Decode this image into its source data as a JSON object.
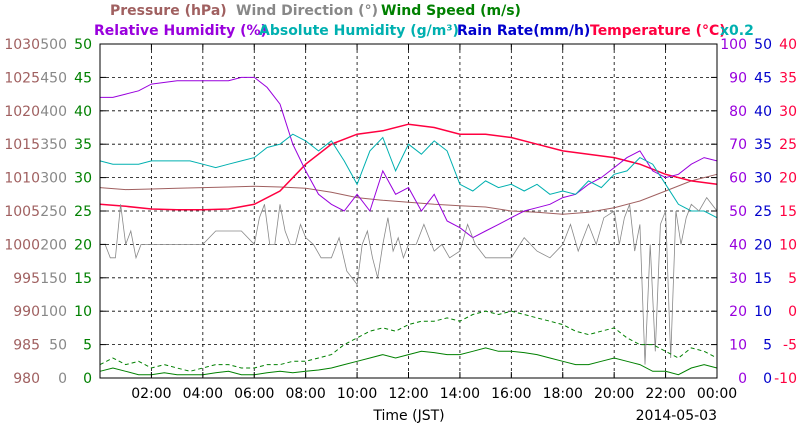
{
  "chart_data": {
    "type": "line",
    "title_line1": [
      {
        "text": "Pressure (hPa)",
        "color": "#a06060"
      },
      {
        "text": "Wind Direction (°)",
        "color": "#888888"
      },
      {
        "text": "Wind Speed (m/s)",
        "color": "#008000"
      }
    ],
    "title_line2": [
      {
        "text": "Relative Humidity (%)",
        "color": "#9900dd"
      },
      {
        "text": "Absolute Humidity (g/m³)",
        "color": "#00b0b0"
      },
      {
        "text": "Rain Rate(mm/h)",
        "color": "#0000cc"
      },
      {
        "text": "Temperature (°C)",
        "color": "#ff0040"
      }
    ],
    "abs_humidity_scale_note": "x0.2",
    "xlabel": "Time (JST)",
    "date_label": "2014-05-03",
    "x_range_hours": [
      0,
      24
    ],
    "x_ticks": [
      "02:00",
      "04:00",
      "06:00",
      "08:00",
      "10:00",
      "12:00",
      "14:00",
      "16:00",
      "18:00",
      "20:00",
      "22:00",
      "00:00"
    ],
    "grid": true,
    "axes": {
      "pressure": {
        "color": "#a06060",
        "range": [
          980,
          1030
        ],
        "ticks": [
          "1030",
          "1025",
          "1020",
          "1015",
          "1010",
          "1005",
          "1000",
          "995",
          "990",
          "985",
          "980"
        ]
      },
      "wind_direction": {
        "color": "#888888",
        "range": [
          0,
          500
        ],
        "ticks": [
          "500",
          "450",
          "400",
          "350",
          "300",
          "250",
          "200",
          "150",
          "100",
          "50",
          "0"
        ]
      },
      "wind_speed": {
        "color": "#008000",
        "range": [
          0,
          50
        ],
        "ticks": [
          "50",
          "45",
          "40",
          "35",
          "30",
          "25",
          "20",
          "15",
          "10",
          "5",
          "0"
        ]
      },
      "humidity": {
        "color": "#9900dd",
        "range": [
          0,
          100
        ],
        "ticks": [
          "100",
          "90",
          "80",
          "70",
          "60",
          "50",
          "40",
          "30",
          "20",
          "10",
          "0"
        ]
      },
      "rain_rate": {
        "color": "#0000cc",
        "range": [
          0,
          50
        ],
        "ticks": [
          "50",
          "45",
          "40",
          "35",
          "30",
          "25",
          "20",
          "15",
          "10",
          "5",
          "0"
        ]
      },
      "temperature": {
        "color": "#ff0040",
        "range": [
          -10,
          40
        ],
        "ticks": [
          "40",
          "35",
          "30",
          "25",
          "20",
          "15",
          "10",
          "5",
          "0",
          "-5",
          "-10"
        ]
      }
    },
    "series": [
      {
        "key": "pressure",
        "color": "#a06060",
        "width": 1,
        "x": [
          0,
          1,
          2,
          3,
          4,
          5,
          6,
          7,
          8,
          9,
          10,
          11,
          12,
          13,
          14,
          15,
          16,
          17,
          18,
          19,
          20,
          21,
          22,
          23,
          24
        ],
        "y": [
          1008.5,
          1008.2,
          1008.3,
          1008.4,
          1008.5,
          1008.6,
          1008.7,
          1008.6,
          1008.4,
          1007.8,
          1007.0,
          1006.6,
          1006.3,
          1006.0,
          1005.8,
          1005.6,
          1005.0,
          1004.8,
          1004.5,
          1004.8,
          1005.5,
          1006.5,
          1008.0,
          1009.5,
          1010.5
        ]
      },
      {
        "key": "temperature",
        "color": "#ff0040",
        "width": 1.5,
        "x": [
          0,
          1,
          2,
          3,
          4,
          5,
          6,
          7,
          8,
          9,
          10,
          11,
          12,
          13,
          14,
          15,
          16,
          17,
          18,
          19,
          20,
          21,
          22,
          23,
          24
        ],
        "y": [
          16,
          15.7,
          15.3,
          15.2,
          15.2,
          15.3,
          16,
          18,
          22,
          25,
          26.5,
          27,
          28,
          27.5,
          26.5,
          26.5,
          26,
          25,
          24,
          23.5,
          23,
          22,
          20.5,
          19.5,
          19
        ]
      },
      {
        "key": "humidity",
        "color": "#9900dd",
        "width": 1,
        "x": [
          0,
          0.5,
          1,
          1.5,
          2,
          3,
          4,
          5,
          5.5,
          6,
          6.5,
          7,
          7.5,
          8,
          8.5,
          9,
          9.5,
          10,
          10.5,
          11,
          11.5,
          12,
          12.5,
          13,
          13.5,
          14,
          14.5,
          15,
          15.5,
          16,
          16.5,
          17,
          17.5,
          18,
          18.5,
          19,
          19.5,
          20,
          20.5,
          21,
          21.5,
          22,
          22.5,
          23,
          23.5,
          24
        ],
        "y": [
          84,
          84,
          85,
          86,
          88,
          89,
          89,
          89,
          90,
          90,
          87,
          82,
          70,
          62,
          55,
          52,
          50,
          55,
          50,
          62,
          55,
          57,
          50,
          55,
          47,
          45,
          42,
          44,
          46,
          48,
          50,
          51,
          52,
          54,
          55,
          58,
          60,
          63,
          66,
          68,
          62,
          60,
          61,
          64,
          66,
          65
        ]
      },
      {
        "key": "abs_humidity",
        "color": "#00b0b0",
        "width": 1,
        "x": [
          0,
          0.5,
          1,
          1.5,
          2,
          2.5,
          3,
          3.5,
          4,
          4.5,
          5,
          5.5,
          6,
          6.5,
          7,
          7.5,
          8,
          8.5,
          9,
          9.5,
          10,
          10.5,
          11,
          11.5,
          12,
          12.5,
          13,
          13.5,
          14,
          14.5,
          15,
          15.5,
          16,
          16.5,
          17,
          17.5,
          18,
          18.5,
          19,
          19.5,
          20,
          20.5,
          21,
          21.5,
          22,
          22.5,
          23,
          23.5,
          24
        ],
        "y": [
          65,
          64,
          64,
          64,
          65,
          65,
          65,
          65,
          64,
          63,
          64,
          65,
          66,
          69,
          70,
          73,
          71,
          68,
          71,
          65,
          58,
          68,
          72,
          62,
          70,
          67,
          71,
          68,
          58,
          56,
          59,
          57,
          58,
          56,
          58,
          55,
          56,
          55,
          59,
          57,
          61,
          62,
          66,
          64,
          58,
          52,
          50,
          50,
          48
        ]
      },
      {
        "key": "wind_direction",
        "color": "#888888",
        "width": 0.8,
        "x": [
          0,
          0.2,
          0.4,
          0.6,
          0.8,
          1,
          1.2,
          1.4,
          1.6,
          1.8,
          2,
          2.5,
          3,
          3.5,
          4,
          4.5,
          5,
          5.5,
          6,
          6.2,
          6.4,
          6.6,
          6.8,
          7,
          7.2,
          7.4,
          7.6,
          7.8,
          8,
          8.3,
          8.6,
          9,
          9.3,
          9.6,
          10,
          10.2,
          10.4,
          10.6,
          10.8,
          11,
          11.2,
          11.4,
          11.6,
          11.8,
          12,
          12.3,
          12.6,
          13,
          13.3,
          13.6,
          14,
          14.3,
          14.6,
          15,
          15.5,
          16,
          16.5,
          17,
          17.5,
          18,
          18.3,
          18.6,
          19,
          19.3,
          19.6,
          20,
          20.2,
          20.4,
          20.6,
          20.8,
          21,
          21.2,
          21.4,
          21.6,
          21.8,
          22,
          22.2,
          22.4,
          22.6,
          22.8,
          23,
          23.3,
          23.6,
          24
        ],
        "y": [
          200,
          200,
          180,
          180,
          260,
          200,
          220,
          180,
          200,
          200,
          200,
          200,
          200,
          200,
          200,
          220,
          220,
          220,
          200,
          240,
          260,
          200,
          200,
          260,
          220,
          200,
          200,
          230,
          210,
          200,
          180,
          180,
          210,
          160,
          140,
          200,
          220,
          180,
          150,
          200,
          240,
          190,
          210,
          180,
          200,
          200,
          230,
          190,
          200,
          180,
          190,
          230,
          200,
          180,
          180,
          180,
          210,
          190,
          180,
          200,
          230,
          190,
          230,
          200,
          240,
          250,
          200,
          240,
          260,
          190,
          230,
          20,
          200,
          40,
          230,
          250,
          30,
          250,
          200,
          240,
          260,
          250,
          270,
          250
        ]
      },
      {
        "key": "wind_speed",
        "color": "#008000",
        "width": 1,
        "x": [
          0,
          0.5,
          1,
          1.5,
          2,
          2.5,
          3,
          3.5,
          4,
          4.5,
          5,
          5.5,
          6,
          6.5,
          7,
          7.5,
          8,
          8.5,
          9,
          9.5,
          10,
          10.5,
          11,
          11.5,
          12,
          12.5,
          13,
          13.5,
          14,
          14.5,
          15,
          15.5,
          16,
          16.5,
          17,
          17.5,
          18,
          18.5,
          19,
          19.5,
          20,
          20.5,
          21,
          21.5,
          22,
          22.5,
          23,
          23.5,
          24
        ],
        "y": [
          1,
          1.5,
          1,
          0.5,
          0.5,
          0.8,
          0.5,
          0.5,
          0.5,
          0.8,
          1,
          0.5,
          0.5,
          0.8,
          1,
          0.8,
          1,
          1.2,
          1.5,
          2,
          2.5,
          3,
          3.5,
          3,
          3.5,
          4,
          3.8,
          3.5,
          3.5,
          4,
          4.5,
          4,
          4,
          3.8,
          3.5,
          3,
          2.5,
          2,
          2,
          2.5,
          3,
          2.5,
          2,
          1,
          1,
          0.5,
          1.5,
          2,
          1.5
        ]
      },
      {
        "key": "wind_gust",
        "color": "#008000",
        "width": 1,
        "dash": "4,3",
        "x": [
          0,
          0.5,
          1,
          1.5,
          2,
          2.5,
          3,
          3.5,
          4,
          4.5,
          5,
          5.5,
          6,
          6.5,
          7,
          7.5,
          8,
          8.5,
          9,
          9.5,
          10,
          10.5,
          11,
          11.5,
          12,
          12.5,
          13,
          13.5,
          14,
          14.5,
          15,
          15.5,
          16,
          16.5,
          17,
          17.5,
          18,
          18.5,
          19,
          19.5,
          20,
          20.5,
          21,
          21.5,
          22,
          22.5,
          23,
          23.5,
          24
        ],
        "y": [
          2,
          3,
          2,
          2.5,
          1.5,
          2,
          1.5,
          1,
          1.5,
          2,
          2,
          1.5,
          1.5,
          2,
          2,
          2.5,
          2.5,
          3,
          3.5,
          5,
          6,
          7,
          7.5,
          7,
          8,
          8.5,
          8.5,
          9,
          8.5,
          9.5,
          10,
          9.5,
          10,
          9.5,
          9,
          8.5,
          8,
          7,
          6.5,
          7,
          7.5,
          6,
          5,
          5,
          4,
          3,
          4.5,
          4,
          3
        ]
      },
      {
        "key": "rain_rate",
        "color": "#0000cc",
        "width": 1,
        "x": [
          0,
          24
        ],
        "y": [
          0,
          0
        ]
      }
    ]
  }
}
